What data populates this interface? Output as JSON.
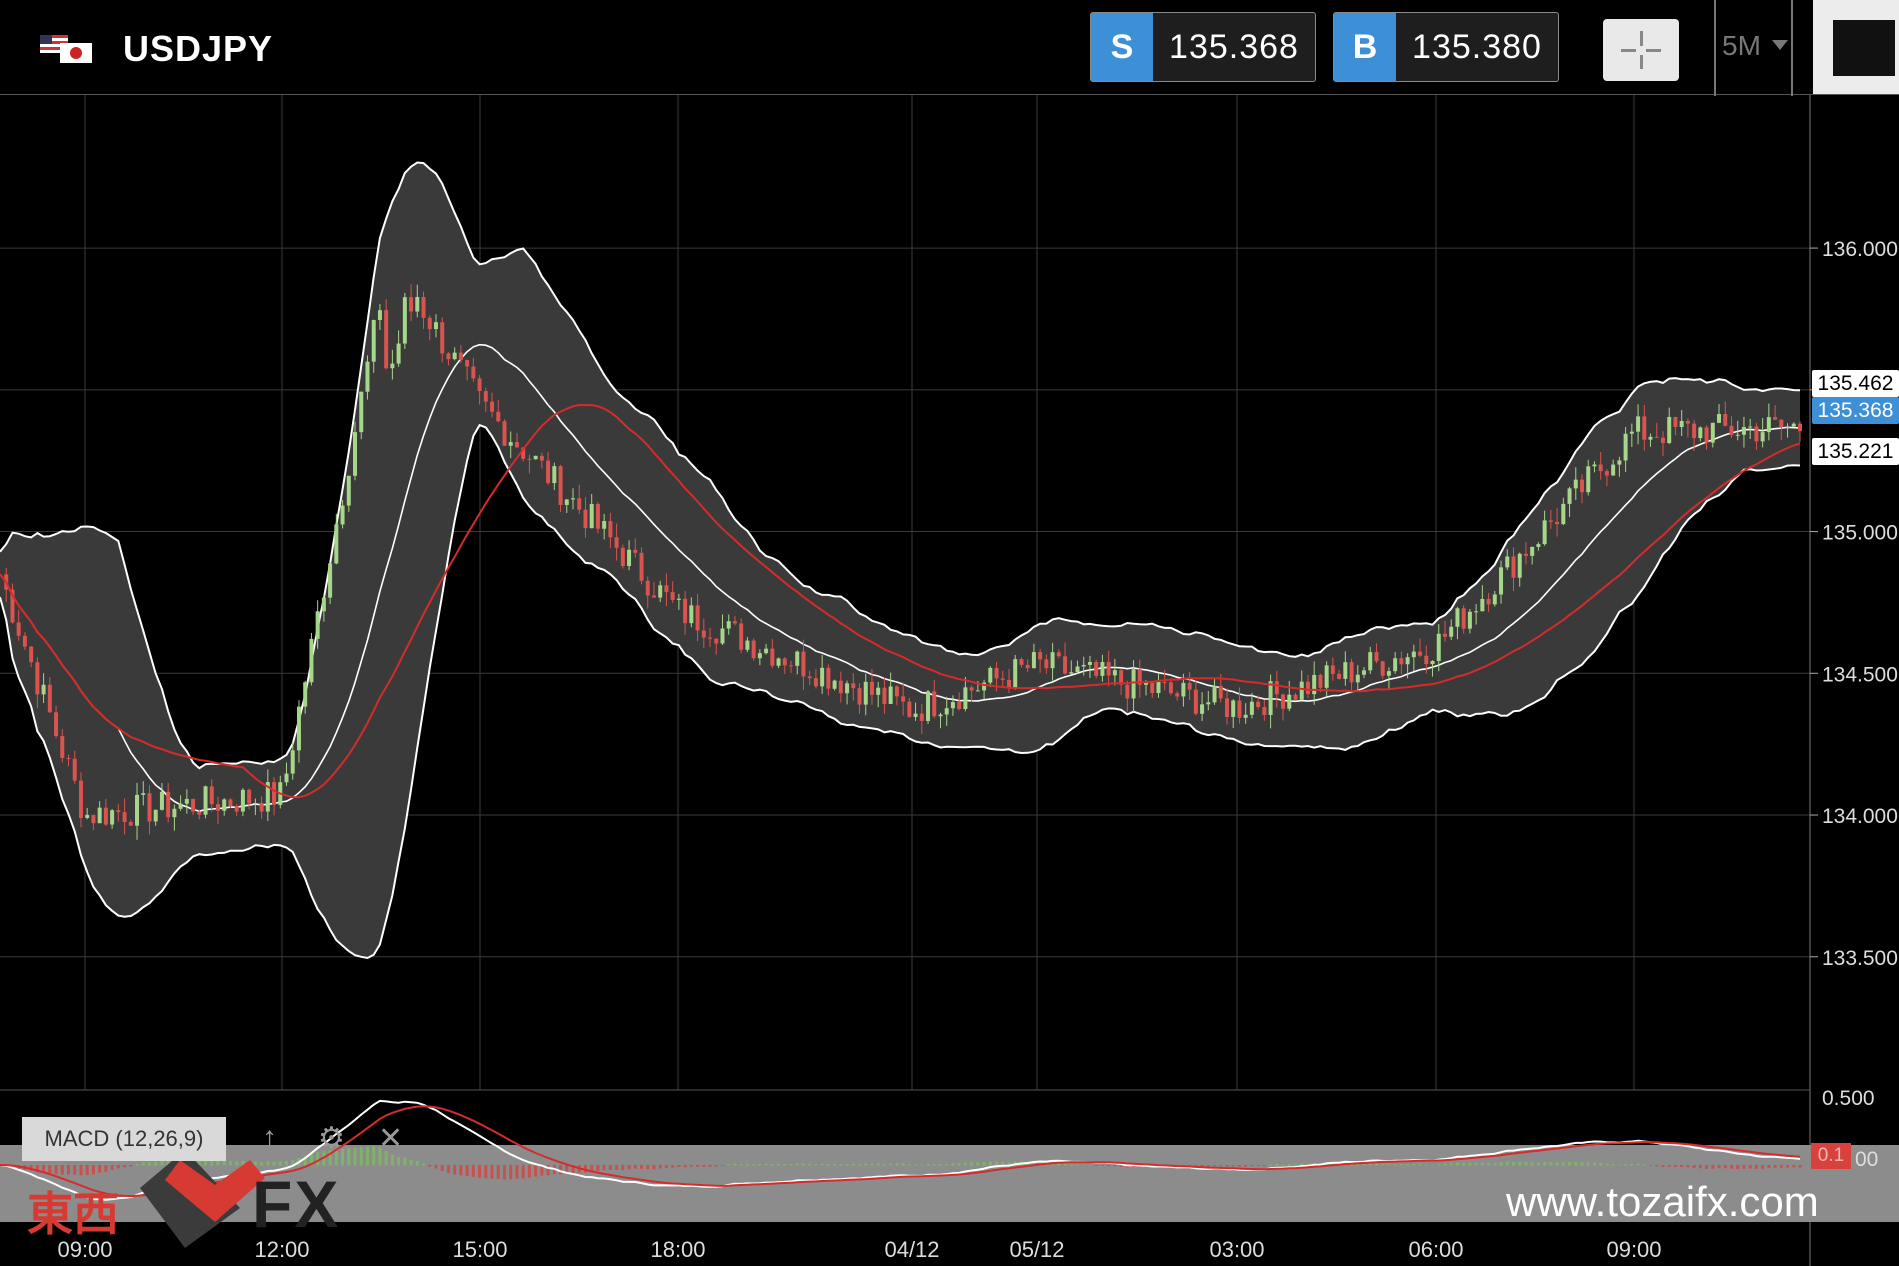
{
  "header": {
    "symbol": "USDJPY",
    "flag_icon": "us-jp-flag-icon",
    "sell": {
      "tag": "S",
      "price": "135.368"
    },
    "buy": {
      "tag": "B",
      "price": "135.380"
    },
    "crosshair_icon": "crosshair-icon",
    "timeframe": "5M",
    "settings_icon": "gear-icon"
  },
  "price_labels": {
    "high": "135.462",
    "current": "135.368",
    "low": "135.221"
  },
  "macd": {
    "label": "MACD (12,26,9)",
    "up_icon": "↑",
    "gear_icon": "⚙",
    "close_icon": "✕",
    "axis_top": "0.500",
    "badge": "0.1",
    "axis_zero": "00"
  },
  "watermark": {
    "brand_cjk": "東西",
    "brand_fx": "FX",
    "url": "www.tozaifx.com"
  },
  "colors": {
    "sell_buy_tag": "#3d8fd6",
    "ma_red": "#d62b2b",
    "band_fill": "#3a3a3a",
    "candle_up": "#a6d68a",
    "candle_down": "#d9534f"
  },
  "chart_data": {
    "type": "candlestick",
    "symbol": "USDJPY",
    "timeframe": "5M",
    "ylim": [
      133.03,
      136.54
    ],
    "y_ticks": [
      "136.000",
      "135.500",
      "135.000",
      "134.500",
      "134.000",
      "133.500"
    ],
    "x_ticks": [
      "09:00",
      "12:00",
      "15:00",
      "18:00",
      "04/12",
      "05/12",
      "03:00",
      "06:00",
      "09:00"
    ],
    "indicators": [
      "Bollinger Bands",
      "Moving Average",
      "MACD (12,26,9)"
    ],
    "key_points": [
      {
        "time": "09:00",
        "price": 134.0
      },
      {
        "time": "12:00",
        "price": 134.07
      },
      {
        "time": "14:15",
        "price": 135.98
      },
      {
        "time": "15:00",
        "price": 135.45
      },
      {
        "time": "18:00",
        "price": 134.72
      },
      {
        "time": "04/12",
        "price": 134.37
      },
      {
        "time": "05/12",
        "price": 134.53
      },
      {
        "time": "03:00",
        "price": 134.38
      },
      {
        "time": "06:00",
        "price": 134.6
      },
      {
        "time": "09:00",
        "price": 135.35
      },
      {
        "time": "end",
        "price": 135.368
      }
    ]
  }
}
